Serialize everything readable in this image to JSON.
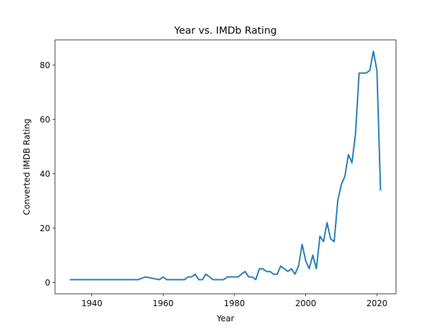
{
  "chart_data": {
    "type": "line",
    "title": "Year vs. IMDb Rating",
    "xlabel": "Year",
    "ylabel": "Converted IMDB Rating",
    "xlim": [
      1929.65,
      2025.35
    ],
    "ylim": [
      -4.2,
      89.2
    ],
    "xticks": [
      1940,
      1960,
      1980,
      2000,
      2020
    ],
    "yticks": [
      0,
      20,
      40,
      60,
      80
    ],
    "grid": false,
    "legend": "none",
    "series": [
      {
        "color": "#1f77b4",
        "x": [
          1934,
          1953,
          1955,
          1959,
          1960,
          1961,
          1966,
          1967,
          1968,
          1969,
          1970,
          1971,
          1972,
          1973,
          1974,
          1977,
          1978,
          1981,
          1983,
          1984,
          1985,
          1986,
          1987,
          1988,
          1989,
          1990,
          1991,
          1992,
          1993,
          1994,
          1995,
          1996,
          1997,
          1998,
          1999,
          2000,
          2001,
          2002,
          2003,
          2004,
          2005,
          2006,
          2007,
          2008,
          2009,
          2010,
          2011,
          2012,
          2013,
          2014,
          2015,
          2016,
          2017,
          2018,
          2019,
          2020,
          2021
        ],
        "y": [
          1,
          1,
          2,
          1,
          2,
          1,
          1,
          2,
          2,
          3,
          1,
          1,
          3,
          2,
          1,
          1,
          2,
          2,
          4,
          2,
          2,
          1,
          5,
          5,
          4,
          4,
          3,
          3,
          6,
          5,
          4,
          5,
          3,
          6,
          14,
          8,
          5,
          10,
          5,
          17,
          15,
          22,
          16,
          15,
          30,
          36,
          39,
          47,
          44,
          55,
          77,
          77,
          77,
          78,
          85,
          78,
          34
        ]
      }
    ]
  }
}
